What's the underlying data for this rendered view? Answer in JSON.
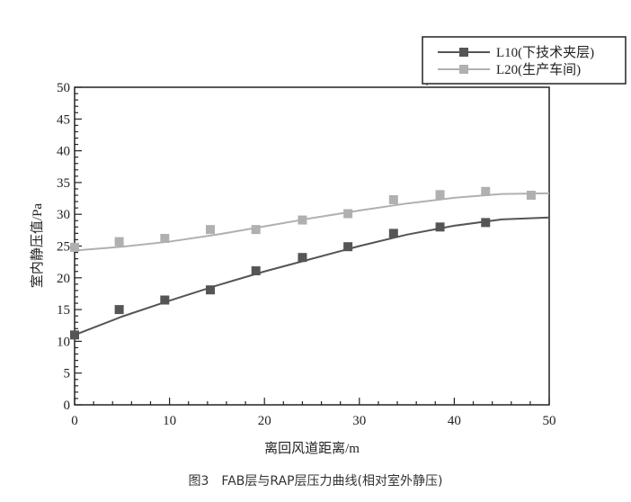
{
  "chart_data": {
    "type": "line",
    "xlabel": "离回风道距离/m",
    "ylabel": "室内静压值/Pa",
    "caption": "图3　FAB层与RAP层压力曲线(相对室外静压)",
    "xlim": [
      0,
      50
    ],
    "ylim": [
      0,
      50
    ],
    "xticks": [
      0,
      10,
      20,
      30,
      40,
      50
    ],
    "yticks": [
      0,
      5,
      10,
      15,
      20,
      25,
      30,
      35,
      40,
      45,
      50
    ],
    "grid": false,
    "legend": "top-right",
    "series": [
      {
        "name": "L10(下技术夹层)",
        "color": "#555555",
        "x": [
          0,
          4.7,
          9.5,
          14.3,
          19.1,
          24,
          28.8,
          33.6,
          38.5,
          43.3
        ],
        "y": [
          11,
          15,
          16.5,
          18.1,
          21.1,
          23.2,
          24.9,
          27,
          28,
          28.7
        ],
        "fit_x": [
          0,
          5,
          10,
          15,
          20,
          25,
          30,
          35,
          40,
          45,
          50
        ],
        "fit_y": [
          11,
          13.9,
          16.4,
          18.8,
          21,
          23,
          25,
          26.8,
          28.2,
          29.2,
          29.5
        ]
      },
      {
        "name": "L20(生产车间)",
        "color": "#b0b0b0",
        "x": [
          0,
          4.7,
          9.5,
          14.3,
          19.1,
          24,
          28.8,
          33.6,
          38.5,
          43.3,
          48.1
        ],
        "y": [
          24.8,
          25.7,
          26.2,
          27.6,
          27.6,
          29.1,
          30.1,
          32.3,
          33.1,
          33.6,
          33
        ],
        "fit_x": [
          0,
          5,
          10,
          15,
          20,
          25,
          30,
          35,
          40,
          45,
          50
        ],
        "fit_y": [
          24.3,
          24.9,
          25.7,
          26.8,
          28.1,
          29.4,
          30.6,
          31.7,
          32.6,
          33.2,
          33.3
        ]
      }
    ]
  }
}
